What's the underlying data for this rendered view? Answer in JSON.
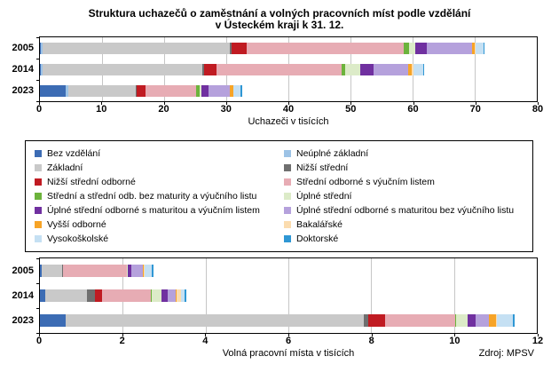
{
  "title": {
    "line1": "Struktura uchazečů o zaměstnání a volných pracovních míst podle vzdělání",
    "line2": "v Ústeckém kraji k 31. 12."
  },
  "source": "Zdroj: MPSV",
  "colors": {
    "gridline": "#C6C6C6",
    "plot_border": "#000000"
  },
  "categories": [
    {
      "label": "Bez vzdělání",
      "color": "#3C6CB4"
    },
    {
      "label": "Neúplné základní",
      "color": "#9DC3E6"
    },
    {
      "label": "Základní",
      "color": "#C9C9C9"
    },
    {
      "label": "Nižší střední",
      "color": "#6F6F6F"
    },
    {
      "label": "Nižší střední odborné",
      "color": "#C01B22"
    },
    {
      "label": "Střední odborné s výučním listem",
      "color": "#E7ACB4"
    },
    {
      "label": "Střední a střední odb. bez maturity a výučního listu",
      "color": "#6CB33C"
    },
    {
      "label": "Úplné střední",
      "color": "#DCEBC8"
    },
    {
      "label": "Úplné střední odborné s maturitou a výučním listem",
      "color": "#7030A0"
    },
    {
      "label": "Úplné střední odborné s maturitou bez výučního listu",
      "color": "#B5A1DC"
    },
    {
      "label": "Vyšší odborné",
      "color": "#F7A427"
    },
    {
      "label": "Bakalářské",
      "color": "#FBDCAF"
    },
    {
      "label": "Vysokoškolské",
      "color": "#C5E0F3"
    },
    {
      "label": "Doktorské",
      "color": "#2F97D4"
    }
  ],
  "chart_data": [
    {
      "type": "bar",
      "orientation": "horizontal",
      "stacked": true,
      "xlabel": "Uchazeči v tisících",
      "xmax": 80,
      "xticks": [
        0,
        10,
        20,
        30,
        40,
        50,
        60,
        70,
        80
      ],
      "categories": [
        "2005",
        "2014",
        "2023"
      ],
      "series": [
        {
          "name": "Bez vzdělání",
          "values": [
            0.1,
            0.15,
            4.2
          ]
        },
        {
          "name": "Neúplné základní",
          "values": [
            0.3,
            0.35,
            0.4
          ]
        },
        {
          "name": "Základní",
          "values": [
            30.2,
            25.6,
            10.8
          ]
        },
        {
          "name": "Nižší střední",
          "values": [
            0.3,
            0.3,
            0.2
          ]
        },
        {
          "name": "Nižší střední odborné",
          "values": [
            2.4,
            2.0,
            1.4
          ]
        },
        {
          "name": "Střední odborné s výučním listem",
          "values": [
            25.3,
            20.2,
            8.1
          ]
        },
        {
          "name": "Střední a střední odb. bez maturity a výučního listu",
          "values": [
            0.8,
            0.5,
            0.6
          ]
        },
        {
          "name": "Úplné střední",
          "values": [
            1.1,
            2.5,
            0.3
          ]
        },
        {
          "name": "Úplné střední odborné s maturitou a výučním listem",
          "values": [
            1.8,
            2.1,
            1.1
          ]
        },
        {
          "name": "Úplné střední odborné s maturitou bez výučního listu",
          "values": [
            7.3,
            5.6,
            3.5
          ]
        },
        {
          "name": "Vyšší odborné",
          "values": [
            0.4,
            0.6,
            0.5
          ]
        },
        {
          "name": "Bakalářské",
          "values": [
            0.1,
            0.2,
            0.1
          ]
        },
        {
          "name": "Vysokoškolské",
          "values": [
            1.3,
            1.6,
            1.1
          ]
        },
        {
          "name": "Doktorské",
          "values": [
            0.1,
            0.1,
            0.3
          ]
        }
      ]
    },
    {
      "type": "bar",
      "orientation": "horizontal",
      "stacked": true,
      "xlabel": "Volná pracovní místa v tisících",
      "xmax": 12,
      "xticks": [
        0,
        2,
        4,
        6,
        8,
        10,
        12
      ],
      "categories": [
        "2005",
        "2014",
        "2023"
      ],
      "series": [
        {
          "name": "Bez vzdělání",
          "values": [
            0.04,
            0.12,
            0.62
          ]
        },
        {
          "name": "Neúplné základní",
          "values": [
            0,
            0.01,
            0
          ]
        },
        {
          "name": "Základní",
          "values": [
            0.5,
            1.0,
            7.2
          ]
        },
        {
          "name": "Nižší střední",
          "values": [
            0.02,
            0.2,
            0.1
          ]
        },
        {
          "name": "Nižší střední odborné",
          "values": [
            0,
            0.18,
            0.42
          ]
        },
        {
          "name": "Střední odborné s výučním listem",
          "values": [
            1.55,
            1.18,
            1.69
          ]
        },
        {
          "name": "Střední a střední odb. bez maturity a výučního listu",
          "values": [
            0,
            0.02,
            0.02
          ]
        },
        {
          "name": "Úplné střední",
          "values": [
            0.02,
            0.22,
            0.27
          ]
        },
        {
          "name": "Úplné střední odborné s maturitou a výučním listem",
          "values": [
            0.08,
            0.16,
            0.2
          ]
        },
        {
          "name": "Úplné střední odborné s maturitou bez výučního listu",
          "values": [
            0.28,
            0.18,
            0.32
          ]
        },
        {
          "name": "Vyšší odborné",
          "values": [
            0.02,
            0.03,
            0.17
          ]
        },
        {
          "name": "Bakalářské",
          "values": [
            0.02,
            0.1,
            0.03
          ]
        },
        {
          "name": "Vysokoškolské",
          "values": [
            0.18,
            0.1,
            0.39
          ]
        },
        {
          "name": "Doktorské",
          "values": [
            0.03,
            0.03,
            0.04
          ]
        }
      ]
    }
  ]
}
